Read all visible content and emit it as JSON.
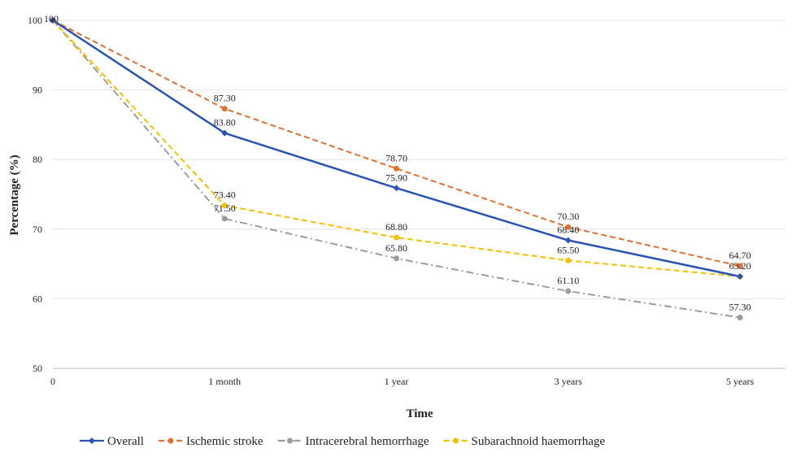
{
  "chart_data": {
    "type": "line",
    "title": "",
    "xlabel": "Time",
    "ylabel": "Percentage (%)",
    "categories": [
      "0",
      "1 month",
      "1 year",
      "3 years",
      "5 years"
    ],
    "ylim": [
      50,
      100
    ],
    "yticks": [
      50,
      60,
      70,
      80,
      90,
      100
    ],
    "grid": "horizontal",
    "legend_position": "bottom",
    "series": [
      {
        "name": "Overall",
        "values": [
          100,
          83.8,
          75.9,
          68.4,
          63.2
        ],
        "labels": [
          "100",
          "83.80",
          "75.90",
          "68.40",
          "63.20"
        ],
        "color": "#2a54b4",
        "style": "solid",
        "marker": "diamond"
      },
      {
        "name": "Ischemic stroke",
        "values": [
          100,
          87.3,
          78.7,
          70.3,
          64.7
        ],
        "labels": [
          "",
          "87.30",
          "78.70",
          "70.30",
          "64.70"
        ],
        "color": "#e0702c",
        "style": "dashed",
        "marker": "circle"
      },
      {
        "name": "Intracerebral hemorrhage",
        "values": [
          100,
          71.5,
          65.8,
          61.1,
          57.3
        ],
        "labels": [
          "",
          "71.50",
          "65.80",
          "61.10",
          "57.30"
        ],
        "color": "#9c9c9c",
        "style": "dashdot",
        "marker": "circle"
      },
      {
        "name": "Subarachnoid haemorrhage",
        "values": [
          100,
          73.4,
          68.8,
          65.5,
          63.2
        ],
        "labels": [
          "",
          "73.40",
          "68.80",
          "65.50",
          ""
        ],
        "color": "#f5c000",
        "style": "dashed",
        "marker": "circle"
      }
    ]
  }
}
